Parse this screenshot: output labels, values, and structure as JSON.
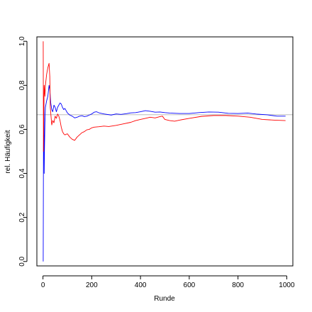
{
  "chart_data": {
    "type": "line",
    "title": "",
    "xlabel": "Runde",
    "ylabel": "rel. Häufigkeit",
    "xlim": [
      -25,
      1025
    ],
    "ylim": [
      -0.02,
      1.02
    ],
    "x_ticks": [
      0,
      200,
      400,
      600,
      800,
      1000
    ],
    "y_ticks": [
      0.0,
      0.2,
      0.4,
      0.6,
      0.8,
      1.0
    ],
    "x_tick_labels": [
      "0",
      "200",
      "400",
      "600",
      "800",
      "1000"
    ],
    "y_tick_labels": [
      "0.0",
      "0.2",
      "0.4",
      "0.6",
      "0.8",
      "1.0"
    ],
    "grid": false,
    "reference_line": {
      "y": 0.6667,
      "color": "#bebebe"
    },
    "series": [
      {
        "color": "#0000ff",
        "points": [
          [
            1,
            0.0
          ],
          [
            2,
            0.5
          ],
          [
            3,
            0.67
          ],
          [
            4,
            0.75
          ],
          [
            5,
            0.4
          ],
          [
            6,
            0.5
          ],
          [
            8,
            0.63
          ],
          [
            10,
            0.7
          ],
          [
            15,
            0.73
          ],
          [
            20,
            0.75
          ],
          [
            25,
            0.8
          ],
          [
            28,
            0.78
          ],
          [
            32,
            0.72
          ],
          [
            36,
            0.69
          ],
          [
            40,
            0.68
          ],
          [
            45,
            0.71
          ],
          [
            50,
            0.7
          ],
          [
            55,
            0.68
          ],
          [
            60,
            0.7
          ],
          [
            65,
            0.71
          ],
          [
            70,
            0.72
          ],
          [
            75,
            0.715
          ],
          [
            80,
            0.7
          ],
          [
            85,
            0.69
          ],
          [
            90,
            0.695
          ],
          [
            95,
            0.685
          ],
          [
            100,
            0.675
          ],
          [
            110,
            0.665
          ],
          [
            120,
            0.66
          ],
          [
            130,
            0.652
          ],
          [
            140,
            0.655
          ],
          [
            150,
            0.66
          ],
          [
            160,
            0.662
          ],
          [
            170,
            0.658
          ],
          [
            180,
            0.66
          ],
          [
            190,
            0.665
          ],
          [
            200,
            0.67
          ],
          [
            210,
            0.678
          ],
          [
            220,
            0.68
          ],
          [
            230,
            0.675
          ],
          [
            250,
            0.67
          ],
          [
            280,
            0.665
          ],
          [
            300,
            0.67
          ],
          [
            320,
            0.668
          ],
          [
            340,
            0.671
          ],
          [
            360,
            0.675
          ],
          [
            380,
            0.676
          ],
          [
            400,
            0.68
          ],
          [
            420,
            0.685
          ],
          [
            440,
            0.682
          ],
          [
            460,
            0.678
          ],
          [
            480,
            0.679
          ],
          [
            500,
            0.676
          ],
          [
            520,
            0.674
          ],
          [
            560,
            0.672
          ],
          [
            600,
            0.672
          ],
          [
            640,
            0.676
          ],
          [
            680,
            0.679
          ],
          [
            720,
            0.678
          ],
          [
            760,
            0.673
          ],
          [
            800,
            0.672
          ],
          [
            840,
            0.674
          ],
          [
            880,
            0.669
          ],
          [
            920,
            0.666
          ],
          [
            960,
            0.66
          ],
          [
            995,
            0.66
          ]
        ]
      },
      {
        "color": "#ff0000",
        "points": [
          [
            1,
            1.0
          ],
          [
            2,
            0.5
          ],
          [
            3,
            0.67
          ],
          [
            5,
            0.8
          ],
          [
            8,
            0.75
          ],
          [
            10,
            0.8
          ],
          [
            15,
            0.85
          ],
          [
            20,
            0.88
          ],
          [
            25,
            0.9
          ],
          [
            28,
            0.84
          ],
          [
            30,
            0.7
          ],
          [
            33,
            0.66
          ],
          [
            36,
            0.62
          ],
          [
            40,
            0.64
          ],
          [
            45,
            0.63
          ],
          [
            50,
            0.66
          ],
          [
            55,
            0.65
          ],
          [
            60,
            0.67
          ],
          [
            65,
            0.66
          ],
          [
            70,
            0.64
          ],
          [
            75,
            0.61
          ],
          [
            80,
            0.59
          ],
          [
            85,
            0.58
          ],
          [
            90,
            0.575
          ],
          [
            100,
            0.58
          ],
          [
            110,
            0.565
          ],
          [
            120,
            0.555
          ],
          [
            130,
            0.55
          ],
          [
            140,
            0.565
          ],
          [
            150,
            0.575
          ],
          [
            160,
            0.585
          ],
          [
            170,
            0.59
          ],
          [
            180,
            0.598
          ],
          [
            190,
            0.6
          ],
          [
            200,
            0.607
          ],
          [
            210,
            0.61
          ],
          [
            230,
            0.612
          ],
          [
            250,
            0.615
          ],
          [
            270,
            0.613
          ],
          [
            300,
            0.618
          ],
          [
            330,
            0.625
          ],
          [
            360,
            0.632
          ],
          [
            380,
            0.64
          ],
          [
            400,
            0.645
          ],
          [
            420,
            0.65
          ],
          [
            440,
            0.655
          ],
          [
            460,
            0.652
          ],
          [
            480,
            0.658
          ],
          [
            490,
            0.66
          ],
          [
            500,
            0.645
          ],
          [
            520,
            0.64
          ],
          [
            540,
            0.637
          ],
          [
            560,
            0.642
          ],
          [
            600,
            0.65
          ],
          [
            650,
            0.659
          ],
          [
            700,
            0.663
          ],
          [
            750,
            0.663
          ],
          [
            800,
            0.66
          ],
          [
            850,
            0.655
          ],
          [
            900,
            0.645
          ],
          [
            950,
            0.642
          ],
          [
            995,
            0.64
          ]
        ]
      }
    ]
  }
}
